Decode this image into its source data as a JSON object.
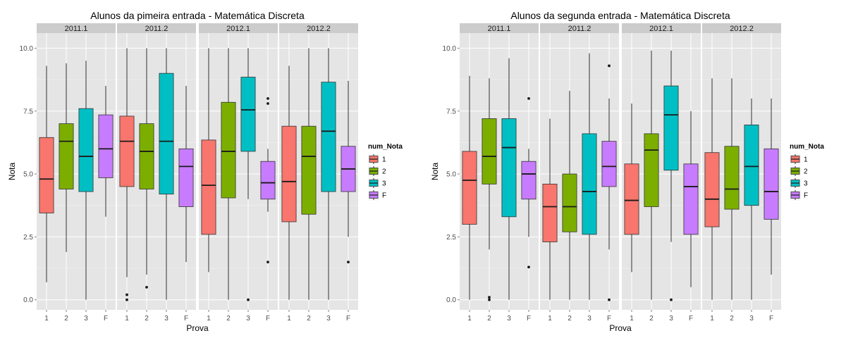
{
  "chart_data": [
    {
      "type": "boxplot",
      "title": "Alunos da pimeira entrada -  Matemática Discreta",
      "xlabel": "Prova",
      "ylabel": "Nota",
      "ylim": [
        -0.4,
        10.6
      ],
      "yticks": [
        "0.0",
        "2.5",
        "5.0",
        "7.5",
        "10.0"
      ],
      "legend_title": "num_Nota",
      "legend_position": "right",
      "categories": [
        "1",
        "2",
        "3",
        "F"
      ],
      "panels": [
        {
          "label": "2011.1",
          "boxes": [
            {
              "cat": "1",
              "whisker_low": 0.7,
              "q1": 3.45,
              "median": 4.8,
              "q3": 6.45,
              "whisker_high": 9.3,
              "outliers": []
            },
            {
              "cat": "2",
              "whisker_low": 1.9,
              "q1": 4.4,
              "median": 6.3,
              "q3": 7.0,
              "whisker_high": 9.4,
              "outliers": []
            },
            {
              "cat": "3",
              "whisker_low": 0.0,
              "q1": 4.3,
              "median": 5.7,
              "q3": 7.6,
              "whisker_high": 9.5,
              "outliers": []
            },
            {
              "cat": "F",
              "whisker_low": 3.3,
              "q1": 4.85,
              "median": 6.0,
              "q3": 7.35,
              "whisker_high": 8.5,
              "outliers": []
            }
          ]
        },
        {
          "label": "2011.2",
          "boxes": [
            {
              "cat": "1",
              "whisker_low": 0.9,
              "q1": 4.5,
              "median": 6.3,
              "q3": 7.3,
              "whisker_high": 10.0,
              "outliers": [
                0.2,
                0.0
              ]
            },
            {
              "cat": "2",
              "whisker_low": 1.0,
              "q1": 4.4,
              "median": 5.9,
              "q3": 7.0,
              "whisker_high": 10.0,
              "outliers": [
                0.5
              ]
            },
            {
              "cat": "3",
              "whisker_low": 0.0,
              "q1": 4.2,
              "median": 6.3,
              "q3": 9.0,
              "whisker_high": 10.0,
              "outliers": []
            },
            {
              "cat": "F",
              "whisker_low": 1.5,
              "q1": 3.7,
              "median": 5.3,
              "q3": 6.0,
              "whisker_high": 8.5,
              "outliers": []
            }
          ]
        },
        {
          "label": "2012.1",
          "boxes": [
            {
              "cat": "1",
              "whisker_low": 1.1,
              "q1": 2.6,
              "median": 4.55,
              "q3": 6.35,
              "whisker_high": 10.0,
              "outliers": []
            },
            {
              "cat": "2",
              "whisker_low": 0.0,
              "q1": 4.05,
              "median": 5.9,
              "q3": 7.85,
              "whisker_high": 10.0,
              "outliers": []
            },
            {
              "cat": "3",
              "whisker_low": 4.0,
              "q1": 5.9,
              "median": 7.55,
              "q3": 8.85,
              "whisker_high": 10.0,
              "outliers": [
                0.0
              ]
            },
            {
              "cat": "F",
              "whisker_low": 3.5,
              "q1": 4.0,
              "median": 4.65,
              "q3": 5.5,
              "whisker_high": 6.0,
              "outliers": [
                8.0,
                7.8,
                1.5
              ]
            }
          ]
        },
        {
          "label": "2012.2",
          "boxes": [
            {
              "cat": "1",
              "whisker_low": 0.0,
              "q1": 3.1,
              "median": 4.7,
              "q3": 6.9,
              "whisker_high": 9.3,
              "outliers": []
            },
            {
              "cat": "2",
              "whisker_low": 0.0,
              "q1": 3.4,
              "median": 5.7,
              "q3": 6.9,
              "whisker_high": 10.0,
              "outliers": []
            },
            {
              "cat": "3",
              "whisker_low": 0.0,
              "q1": 4.3,
              "median": 6.7,
              "q3": 8.65,
              "whisker_high": 10.0,
              "outliers": []
            },
            {
              "cat": "F",
              "whisker_low": 2.5,
              "q1": 4.3,
              "median": 5.2,
              "q3": 6.1,
              "whisker_high": 8.7,
              "outliers": [
                1.5
              ]
            }
          ]
        }
      ]
    },
    {
      "type": "boxplot",
      "title": "Alunos da segunda entrada -  Matemática Discreta",
      "xlabel": "Prova",
      "ylabel": "Nota",
      "ylim": [
        -0.4,
        10.6
      ],
      "yticks": [
        "0.0",
        "2.5",
        "5.0",
        "7.5",
        "10.0"
      ],
      "legend_title": "num_Nota",
      "legend_position": "right",
      "categories": [
        "1",
        "2",
        "3",
        "F"
      ],
      "panels": [
        {
          "label": "2011.1",
          "boxes": [
            {
              "cat": "1",
              "whisker_low": 0.0,
              "q1": 3.0,
              "median": 4.75,
              "q3": 5.9,
              "whisker_high": 8.9,
              "outliers": []
            },
            {
              "cat": "2",
              "whisker_low": 2.0,
              "q1": 4.6,
              "median": 5.7,
              "q3": 7.2,
              "whisker_high": 8.8,
              "outliers": [
                0.1,
                0.0
              ]
            },
            {
              "cat": "3",
              "whisker_low": 0.0,
              "q1": 3.3,
              "median": 6.05,
              "q3": 7.2,
              "whisker_high": 9.6,
              "outliers": []
            },
            {
              "cat": "F",
              "whisker_low": 2.5,
              "q1": 4.0,
              "median": 5.0,
              "q3": 5.5,
              "whisker_high": 6.0,
              "outliers": [
                8.0,
                1.3
              ]
            }
          ]
        },
        {
          "label": "2011.2",
          "boxes": [
            {
              "cat": "1",
              "whisker_low": 0.0,
              "q1": 2.3,
              "median": 3.7,
              "q3": 4.6,
              "whisker_high": 7.2,
              "outliers": []
            },
            {
              "cat": "2",
              "whisker_low": 0.0,
              "q1": 2.7,
              "median": 3.7,
              "q3": 5.0,
              "whisker_high": 8.3,
              "outliers": []
            },
            {
              "cat": "3",
              "whisker_low": 0.0,
              "q1": 2.6,
              "median": 4.3,
              "q3": 6.6,
              "whisker_high": 9.8,
              "outliers": []
            },
            {
              "cat": "F",
              "whisker_low": 2.0,
              "q1": 4.5,
              "median": 5.3,
              "q3": 6.3,
              "whisker_high": 8.0,
              "outliers": [
                9.3,
                0.0
              ]
            }
          ]
        },
        {
          "label": "2012.1",
          "boxes": [
            {
              "cat": "1",
              "whisker_low": 1.1,
              "q1": 2.6,
              "median": 3.95,
              "q3": 5.4,
              "whisker_high": 7.8,
              "outliers": []
            },
            {
              "cat": "2",
              "whisker_low": 0.0,
              "q1": 3.7,
              "median": 5.95,
              "q3": 6.6,
              "whisker_high": 9.9,
              "outliers": []
            },
            {
              "cat": "3",
              "whisker_low": 2.3,
              "q1": 5.15,
              "median": 7.35,
              "q3": 8.5,
              "whisker_high": 9.9,
              "outliers": [
                0.0
              ]
            },
            {
              "cat": "F",
              "whisker_low": 0.5,
              "q1": 2.6,
              "median": 4.5,
              "q3": 5.4,
              "whisker_high": 7.5,
              "outliers": []
            }
          ]
        },
        {
          "label": "2012.2",
          "boxes": [
            {
              "cat": "1",
              "whisker_low": 0.0,
              "q1": 2.9,
              "median": 4.0,
              "q3": 5.85,
              "whisker_high": 8.8,
              "outliers": []
            },
            {
              "cat": "2",
              "whisker_low": 0.0,
              "q1": 3.6,
              "median": 4.4,
              "q3": 6.1,
              "whisker_high": 8.8,
              "outliers": []
            },
            {
              "cat": "3",
              "whisker_low": 0.0,
              "q1": 3.75,
              "median": 5.3,
              "q3": 6.95,
              "whisker_high": 8.0,
              "outliers": []
            },
            {
              "cat": "F",
              "whisker_low": 1.0,
              "q1": 3.2,
              "median": 4.3,
              "q3": 6.0,
              "whisker_high": 8.0,
              "outliers": []
            }
          ]
        }
      ]
    }
  ],
  "series": [
    {
      "name": "1",
      "color": "#F8766D"
    },
    {
      "name": "2",
      "color": "#7CAE00"
    },
    {
      "name": "3",
      "color": "#00BFC4"
    },
    {
      "name": "F",
      "color": "#C77CFF"
    }
  ]
}
